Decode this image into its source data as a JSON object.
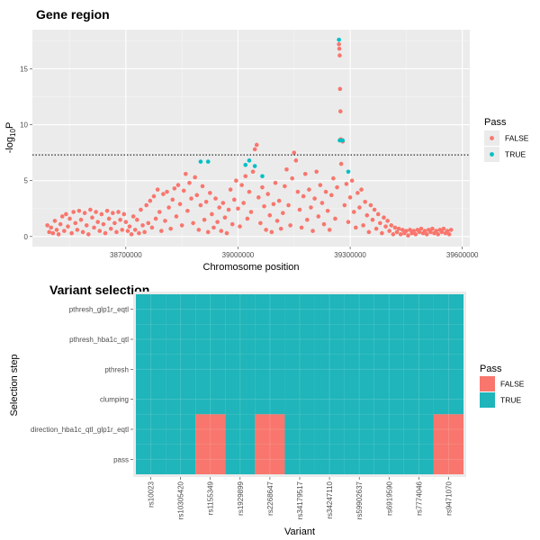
{
  "chart_data": [
    {
      "type": "scatter",
      "title": "Gene region",
      "xlabel": "Chromosome position",
      "ylabel": "-log10P",
      "ylabel_parts": [
        "-log",
        "10",
        "P"
      ],
      "xlim": [
        38450000,
        39620000
      ],
      "ylim": [
        -0.9,
        18.5
      ],
      "xticks": [
        38700000,
        39000000,
        39300000,
        39600000
      ],
      "xtick_labels": [
        "38700000",
        "39000000",
        "39300000",
        "39600000"
      ],
      "yticks": [
        0,
        5,
        10,
        15
      ],
      "ytick_labels": [
        "0",
        "5",
        "10",
        "15"
      ],
      "threshold_line": 7.3,
      "grid": true,
      "legend": {
        "title": "Pass",
        "position": "right"
      },
      "series": [
        {
          "name": "FALSE",
          "color": "#F8766D",
          "points": [
            [
              38490000,
              1.0
            ],
            [
              38495000,
              0.4
            ],
            [
              38500000,
              0.8
            ],
            [
              38505000,
              0.3
            ],
            [
              38510000,
              1.4
            ],
            [
              38515000,
              0.6
            ],
            [
              38520000,
              0.2
            ],
            [
              38525000,
              1.1
            ],
            [
              38530000,
              1.8
            ],
            [
              38535000,
              0.5
            ],
            [
              38540000,
              2.0
            ],
            [
              38545000,
              0.9
            ],
            [
              38550000,
              1.6
            ],
            [
              38555000,
              0.3
            ],
            [
              38560000,
              2.2
            ],
            [
              38565000,
              1.2
            ],
            [
              38570000,
              0.6
            ],
            [
              38575000,
              2.3
            ],
            [
              38580000,
              1.5
            ],
            [
              38585000,
              0.4
            ],
            [
              38590000,
              2.1
            ],
            [
              38595000,
              1.0
            ],
            [
              38600000,
              0.2
            ],
            [
              38605000,
              2.4
            ],
            [
              38610000,
              1.7
            ],
            [
              38615000,
              0.8
            ],
            [
              38620000,
              2.2
            ],
            [
              38625000,
              1.3
            ],
            [
              38630000,
              0.5
            ],
            [
              38635000,
              2.0
            ],
            [
              38640000,
              1.1
            ],
            [
              38645000,
              0.3
            ],
            [
              38650000,
              2.3
            ],
            [
              38655000,
              1.6
            ],
            [
              38660000,
              0.7
            ],
            [
              38665000,
              2.1
            ],
            [
              38670000,
              1.2
            ],
            [
              38675000,
              0.4
            ],
            [
              38680000,
              2.2
            ],
            [
              38685000,
              1.5
            ],
            [
              38690000,
              0.6
            ],
            [
              38695000,
              2.0
            ],
            [
              38700000,
              1.3
            ],
            [
              38705000,
              0.5
            ],
            [
              38710000,
              0.9
            ],
            [
              38715000,
              0.2
            ],
            [
              38720000,
              1.8
            ],
            [
              38725000,
              0.6
            ],
            [
              38730000,
              1.5
            ],
            [
              38735000,
              0.3
            ],
            [
              38740000,
              2.4
            ],
            [
              38745000,
              1.0
            ],
            [
              38750000,
              0.4
            ],
            [
              38755000,
              2.8
            ],
            [
              38760000,
              1.2
            ],
            [
              38765000,
              3.2
            ],
            [
              38770000,
              0.8
            ],
            [
              38775000,
              3.6
            ],
            [
              38780000,
              1.6
            ],
            [
              38785000,
              4.2
            ],
            [
              38790000,
              2.2
            ],
            [
              38795000,
              0.5
            ],
            [
              38800000,
              3.8
            ],
            [
              38805000,
              1.4
            ],
            [
              38810000,
              4.0
            ],
            [
              38815000,
              2.6
            ],
            [
              38820000,
              0.7
            ],
            [
              38825000,
              3.3
            ],
            [
              38830000,
              4.3
            ],
            [
              38835000,
              1.8
            ],
            [
              38840000,
              4.6
            ],
            [
              38845000,
              2.9
            ],
            [
              38850000,
              1.0
            ],
            [
              38855000,
              4.1
            ],
            [
              38860000,
              5.6
            ],
            [
              38865000,
              2.3
            ],
            [
              38870000,
              4.8
            ],
            [
              38875000,
              3.4
            ],
            [
              38880000,
              1.2
            ],
            [
              38885000,
              5.3
            ],
            [
              38890000,
              3.7
            ],
            [
              38895000,
              0.6
            ],
            [
              38900000,
              2.8
            ],
            [
              38905000,
              4.5
            ],
            [
              38910000,
              1.5
            ],
            [
              38915000,
              3.1
            ],
            [
              38920000,
              0.4
            ],
            [
              38925000,
              3.9
            ],
            [
              38930000,
              2.0
            ],
            [
              38935000,
              0.8
            ],
            [
              38940000,
              3.4
            ],
            [
              38945000,
              1.3
            ],
            [
              38950000,
              2.6
            ],
            [
              38955000,
              0.5
            ],
            [
              38960000,
              3.0
            ],
            [
              38965000,
              1.7
            ],
            [
              38970000,
              0.3
            ],
            [
              38975000,
              2.4
            ],
            [
              38980000,
              4.2
            ],
            [
              38985000,
              1.1
            ],
            [
              38990000,
              3.3
            ],
            [
              38995000,
              5.0
            ],
            [
              39000000,
              2.5
            ],
            [
              39005000,
              0.9
            ],
            [
              39010000,
              4.6
            ],
            [
              39015000,
              3.0
            ],
            [
              39020000,
              5.4
            ],
            [
              39025000,
              1.6
            ],
            [
              39030000,
              4.0
            ],
            [
              39035000,
              2.2
            ],
            [
              39040000,
              5.8
            ],
            [
              39045000,
              7.8
            ],
            [
              39050000,
              8.2
            ],
            [
              39055000,
              3.5
            ],
            [
              39060000,
              1.2
            ],
            [
              39065000,
              4.4
            ],
            [
              39070000,
              2.7
            ],
            [
              39075000,
              0.6
            ],
            [
              39080000,
              3.8
            ],
            [
              39085000,
              1.9
            ],
            [
              39090000,
              0.4
            ],
            [
              39095000,
              2.9
            ],
            [
              39100000,
              4.8
            ],
            [
              39105000,
              1.4
            ],
            [
              39110000,
              3.2
            ],
            [
              39115000,
              0.7
            ],
            [
              39120000,
              2.1
            ],
            [
              39125000,
              4.5
            ],
            [
              39130000,
              6.0
            ],
            [
              39135000,
              2.8
            ],
            [
              39140000,
              1.0
            ],
            [
              39145000,
              5.2
            ],
            [
              39150000,
              7.5
            ],
            [
              39155000,
              6.8
            ],
            [
              39160000,
              4.0
            ],
            [
              39165000,
              2.4
            ],
            [
              39170000,
              0.8
            ],
            [
              39175000,
              3.6
            ],
            [
              39180000,
              5.6
            ],
            [
              39185000,
              1.5
            ],
            [
              39190000,
              4.2
            ],
            [
              39195000,
              2.6
            ],
            [
              39200000,
              0.5
            ],
            [
              39205000,
              3.4
            ],
            [
              39210000,
              5.8
            ],
            [
              39215000,
              1.8
            ],
            [
              39220000,
              4.6
            ],
            [
              39225000,
              3.0
            ],
            [
              39230000,
              1.1
            ],
            [
              39235000,
              4.0
            ],
            [
              39240000,
              2.3
            ],
            [
              39245000,
              0.6
            ],
            [
              39250000,
              3.7
            ],
            [
              39255000,
              5.2
            ],
            [
              39260000,
              1.6
            ],
            [
              39265000,
              4.4
            ],
            [
              39270000,
              17.2
            ],
            [
              39271000,
              16.8
            ],
            [
              39272000,
              16.2
            ],
            [
              39273000,
              13.2
            ],
            [
              39274000,
              11.2
            ],
            [
              39275000,
              8.7
            ],
            [
              39276000,
              6.5
            ],
            [
              39280000,
              8.5
            ],
            [
              39285000,
              2.8
            ],
            [
              39290000,
              4.7
            ],
            [
              39295000,
              1.3
            ],
            [
              39300000,
              3.5
            ],
            [
              39305000,
              5.0
            ],
            [
              39310000,
              2.2
            ],
            [
              39315000,
              0.8
            ],
            [
              39320000,
              3.9
            ],
            [
              39325000,
              2.6
            ],
            [
              39330000,
              4.2
            ],
            [
              39335000,
              1.0
            ],
            [
              39340000,
              3.1
            ],
            [
              39345000,
              1.9
            ],
            [
              39350000,
              0.4
            ],
            [
              39355000,
              2.8
            ],
            [
              39360000,
              1.5
            ],
            [
              39365000,
              2.4
            ],
            [
              39370000,
              0.7
            ],
            [
              39375000,
              2.0
            ],
            [
              39380000,
              1.2
            ],
            [
              39385000,
              0.3
            ],
            [
              39390000,
              1.7
            ],
            [
              39395000,
              0.9
            ],
            [
              39400000,
              1.4
            ],
            [
              39405000,
              0.5
            ],
            [
              39410000,
              1.0
            ],
            [
              39415000,
              0.2
            ],
            [
              39420000,
              0.8
            ],
            [
              39425000,
              0.4
            ],
            [
              39430000,
              0.7
            ],
            [
              39435000,
              0.2
            ],
            [
              39440000,
              0.6
            ],
            [
              39445000,
              0.3
            ],
            [
              39450000,
              0.5
            ],
            [
              39455000,
              0.1
            ],
            [
              39460000,
              0.6
            ],
            [
              39465000,
              0.3
            ],
            [
              39470000,
              0.5
            ],
            [
              39475000,
              0.2
            ],
            [
              39480000,
              0.6
            ],
            [
              39485000,
              0.4
            ],
            [
              39490000,
              0.7
            ],
            [
              39495000,
              0.3
            ],
            [
              39500000,
              0.5
            ],
            [
              39505000,
              0.2
            ],
            [
              39510000,
              0.6
            ],
            [
              39515000,
              0.4
            ],
            [
              39520000,
              0.7
            ],
            [
              39525000,
              0.3
            ],
            [
              39530000,
              0.5
            ],
            [
              39535000,
              0.2
            ],
            [
              39540000,
              0.6
            ],
            [
              39545000,
              0.4
            ],
            [
              39550000,
              0.7
            ],
            [
              39555000,
              0.3
            ],
            [
              39560000,
              0.5
            ],
            [
              39565000,
              0.2
            ],
            [
              39570000,
              0.6
            ]
          ]
        },
        {
          "name": "TRUE",
          "color": "#00BFC4",
          "points": [
            [
              38900000,
              6.7
            ],
            [
              38920000,
              6.7
            ],
            [
              39020000,
              6.4
            ],
            [
              39030000,
              6.8
            ],
            [
              39045000,
              6.3
            ],
            [
              39065000,
              5.4
            ],
            [
              39270000,
              17.6
            ],
            [
              39272000,
              8.6
            ],
            [
              39280000,
              8.6
            ],
            [
              39295000,
              5.8
            ]
          ]
        }
      ]
    },
    {
      "type": "heatmap",
      "title": "Variant selection",
      "xlabel": "Variant",
      "ylabel": "Selection step",
      "categories": [
        "rs10023",
        "rs10305420",
        "rs1155349",
        "rs1929899",
        "rs2268647",
        "rs34179517",
        "rs34247110",
        "rs59902637",
        "rs6919590",
        "rs7774046",
        "rs9471070"
      ],
      "steps": [
        "pthresh_glp1r_eqtl",
        "pthresh_hba1c_qtl",
        "pthresh",
        "clumping",
        "direction_hba1c_qtl_glp1r_eqtl",
        "pass"
      ],
      "failed_cells": [
        {
          "step": "direction_hba1c_qtl_glp1r_eqtl",
          "variant": "rs1155349"
        },
        {
          "step": "direction_hba1c_qtl_glp1r_eqtl",
          "variant": "rs2268647"
        },
        {
          "step": "direction_hba1c_qtl_glp1r_eqtl",
          "variant": "rs9471070"
        },
        {
          "step": "pass",
          "variant": "rs1155349"
        },
        {
          "step": "pass",
          "variant": "rs2268647"
        },
        {
          "step": "pass",
          "variant": "rs9471070"
        }
      ],
      "legend": {
        "title": "Pass",
        "position": "right",
        "entries": [
          "FALSE",
          "TRUE"
        ]
      },
      "colors": {
        "FALSE": "#F8766D",
        "TRUE": "#1FB5BA"
      }
    }
  ]
}
